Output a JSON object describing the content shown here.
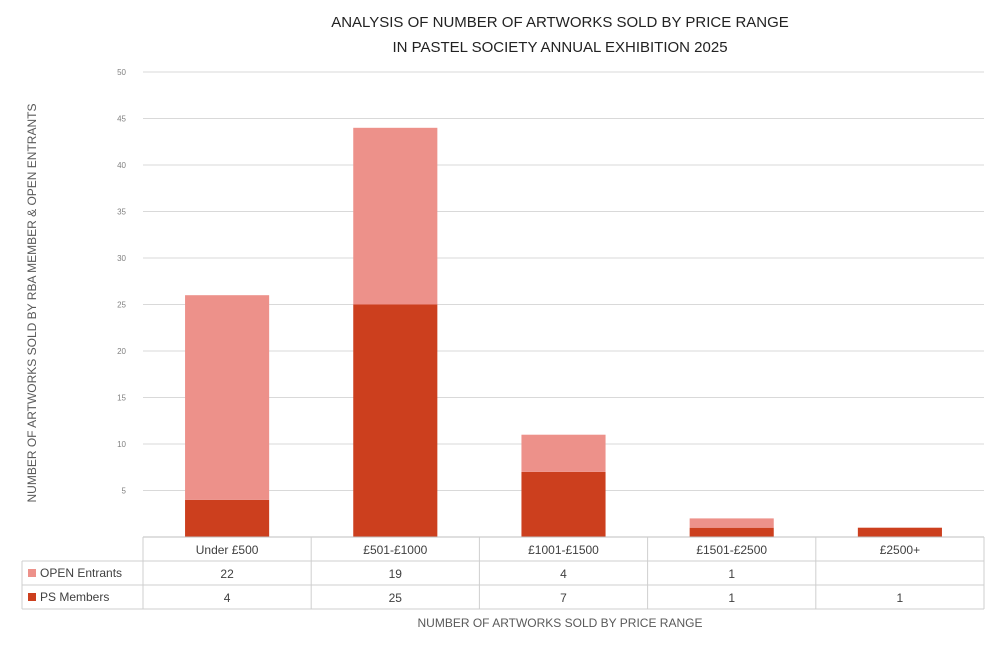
{
  "chart_data": {
    "type": "bar",
    "stacked": true,
    "title_lines": [
      "ANALYSIS OF NUMBER OF ARTWORKS SOLD BY PRICE RANGE",
      "IN PASTEL SOCIETY ANNUAL EXHIBITION 2025"
    ],
    "xlabel": "NUMBER OF ARTWORKS SOLD BY PRICE RANGE",
    "ylabel": "NUMBER OF ARTWORKS SOLD BY RBA MEMBER & OPEN ENTRANTS",
    "categories": [
      "Under £500",
      "£501-£1000",
      "£1001-£1500",
      "£1501-£2500",
      "£2500+"
    ],
    "series": [
      {
        "name": "PS Members",
        "values": [
          4,
          25,
          7,
          1,
          1
        ],
        "color": "#cc3f1e"
      },
      {
        "name": "OPEN Entrants",
        "values": [
          22,
          19,
          4,
          1,
          null
        ],
        "color": "#ed918a"
      }
    ],
    "table_row_order": [
      "OPEN Entrants",
      "PS Members"
    ],
    "ylim": [
      0,
      50
    ],
    "yticks": [
      0,
      5,
      10,
      15,
      20,
      25,
      30,
      35,
      40,
      45,
      50
    ],
    "ytick_labels": [
      "",
      "5",
      "10",
      "15",
      "20",
      "25",
      "30",
      "35",
      "40",
      "45",
      "50"
    ],
    "grid": true,
    "legend": "data-table"
  }
}
